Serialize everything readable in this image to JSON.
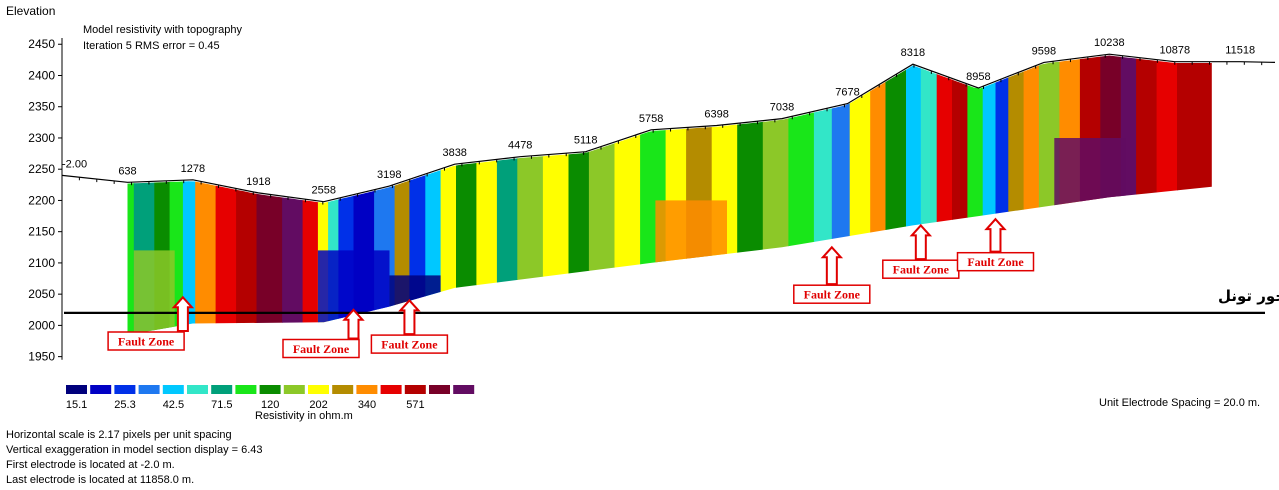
{
  "chart_data": {
    "type": "heatmap",
    "title": "Model resistivity with topography",
    "subtitle": "Iteration 5 RMS error = 0.45",
    "ylabel": "Elevation",
    "y_ticks": [
      2450,
      2400,
      2350,
      2300,
      2250,
      2200,
      2150,
      2100,
      2050,
      2000,
      1950
    ],
    "ylim": [
      1935,
      2460
    ],
    "xlim": [
      -2,
      11858
    ],
    "x_top_labels": [
      "-2.00",
      "638",
      "1278",
      "1918",
      "2558",
      "3198",
      "3838",
      "4478",
      "5118",
      "5758",
      "6398",
      "7038",
      "7678",
      "8318",
      "8958",
      "9598",
      "10238",
      "10878",
      "11518"
    ],
    "topography": [
      {
        "x": -2,
        "y": 2240
      },
      {
        "x": 638,
        "y": 2229
      },
      {
        "x": 1278,
        "y": 2233
      },
      {
        "x": 1918,
        "y": 2212
      },
      {
        "x": 2558,
        "y": 2198
      },
      {
        "x": 3198,
        "y": 2223
      },
      {
        "x": 3838,
        "y": 2258
      },
      {
        "x": 4478,
        "y": 2270
      },
      {
        "x": 5118,
        "y": 2278
      },
      {
        "x": 5758,
        "y": 2313
      },
      {
        "x": 6398,
        "y": 2320
      },
      {
        "x": 7038,
        "y": 2331
      },
      {
        "x": 7678,
        "y": 2355
      },
      {
        "x": 8318,
        "y": 2418
      },
      {
        "x": 8958,
        "y": 2380
      },
      {
        "x": 9598,
        "y": 2421
      },
      {
        "x": 10238,
        "y": 2434
      },
      {
        "x": 10878,
        "y": 2422
      },
      {
        "x": 11518,
        "y": 2422
      },
      {
        "x": 11858,
        "y": 2421
      }
    ],
    "section_bottom": [
      {
        "x": 638,
        "y": 1985
      },
      {
        "x": 1278,
        "y": 2003
      },
      {
        "x": 2558,
        "y": 2005
      },
      {
        "x": 3198,
        "y": 2030
      },
      {
        "x": 3838,
        "y": 2060
      },
      {
        "x": 5758,
        "y": 2100
      },
      {
        "x": 7038,
        "y": 2125
      },
      {
        "x": 8318,
        "y": 2160
      },
      {
        "x": 8958,
        "y": 2175
      },
      {
        "x": 10238,
        "y": 2205
      },
      {
        "x": 11240,
        "y": 2222
      }
    ],
    "color_scale": {
      "values": [
        15.1,
        25.3,
        42.5,
        71.5,
        120,
        202,
        340,
        571
      ],
      "colors": [
        "#00007c",
        "#0000c4",
        "#0030e8",
        "#1e78f0",
        "#00c8ff",
        "#32e6c8",
        "#00a07a",
        "#19e619",
        "#0a8c00",
        "#8cc828",
        "#ffff00",
        "#b48c00",
        "#ff8c00",
        "#e60000",
        "#b40000",
        "#780028",
        "#620c62"
      ],
      "label": "Resistivity in ohm.m"
    },
    "annotations": [
      {
        "text": "Fault Zone",
        "target_x": 1180,
        "target_y": 2045,
        "label_x": 820,
        "label_y": 1975
      },
      {
        "text": "Fault Zone",
        "target_x": 2848,
        "target_y": 2025,
        "label_x": 2530,
        "label_y": 1963
      },
      {
        "text": "Fault Zone",
        "target_x": 3395,
        "target_y": 2040,
        "label_x": 3395,
        "label_y": 1970
      },
      {
        "text": "Fault Zone",
        "target_x": 7525,
        "target_y": 2125,
        "label_x": 7525,
        "label_y": 2050
      },
      {
        "text": "Fault Zone",
        "target_x": 8395,
        "target_y": 2160,
        "label_x": 8395,
        "label_y": 2090
      },
      {
        "text": "Fault Zone",
        "target_x": 9125,
        "target_y": 2170,
        "label_x": 9125,
        "label_y": 2102
      }
    ],
    "tunnel_axis": {
      "y": 2020,
      "label": "محور تونل"
    },
    "grid": false,
    "legend": "bottom-left"
  },
  "info": {
    "unit_spacing": "Unit Electrode Spacing = 20.0 m.",
    "footer": [
      "Horizontal scale is 2.17 pixels per unit spacing",
      "Vertical exaggeration in model section display = 6.43",
      "First electrode is located at -2.0  m.",
      "Last electrode is located at 11858.0 m."
    ]
  }
}
